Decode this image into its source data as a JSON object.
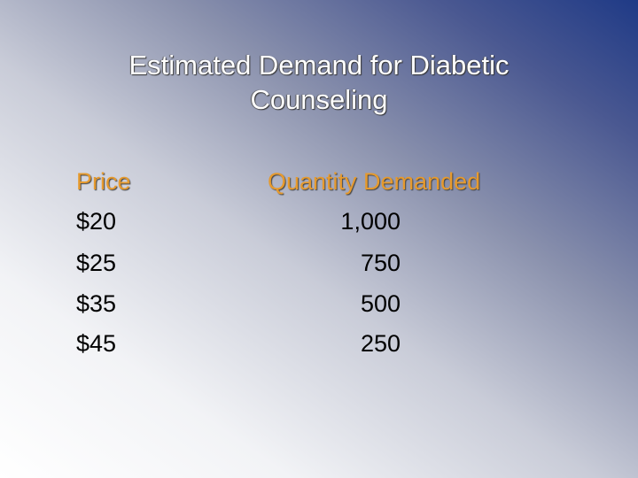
{
  "header": {
    "title": "Estimated Demand for Diabetic Counseling"
  },
  "table": {
    "columns": [
      "Price",
      "Quantity Demanded"
    ],
    "rows": [
      [
        "$20",
        "1,000"
      ],
      [
        "$25",
        "750"
      ],
      [
        "$35",
        "500"
      ],
      [
        "$45",
        "250"
      ]
    ]
  }
}
